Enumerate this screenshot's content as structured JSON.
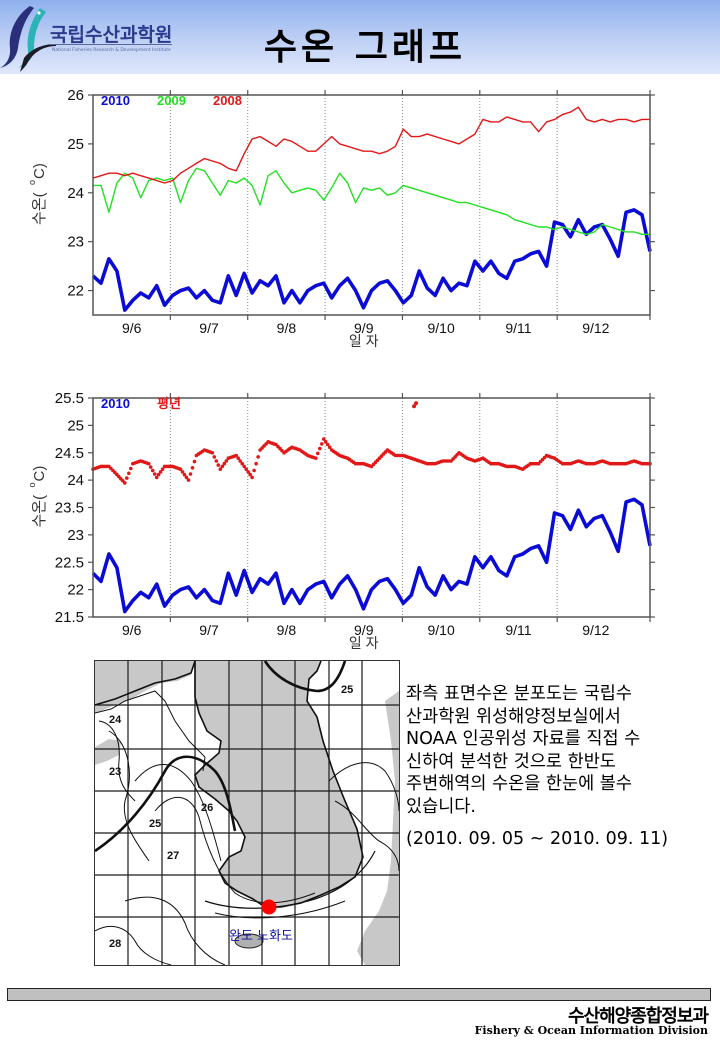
{
  "header": {
    "logo_kr": "국립수산과학원",
    "logo_en": "National Fisheries Research & Development Institute",
    "title": "수온 그래프"
  },
  "colors": {
    "y2010": "#0b0bd6",
    "y2009": "#22e022",
    "y2008": "#e01818",
    "normal": "#e01818",
    "marker": "#ff0000",
    "map_label": "#1010a0",
    "land": "#c8c8c8"
  },
  "chart_data": [
    {
      "type": "line",
      "title": "",
      "xlabel": "일 자",
      "ylabel": "수온(°C)",
      "ylabel_parts": [
        "수온(",
        "o",
        " C)"
      ],
      "x_unit": "days since 9/5 12:00",
      "xlim": [
        0,
        7.2
      ],
      "ylim": [
        21.5,
        26
      ],
      "yticks": [
        22,
        23,
        24,
        25,
        26
      ],
      "ytick_labels": [
        "22",
        "23",
        "24",
        "25",
        "26"
      ],
      "xtick_labels": [
        "9/6",
        "9/7",
        "9/8",
        "9/9",
        "9/10",
        "9/11",
        "9/12"
      ],
      "grid": "vertical-dotted",
      "legend": "top-left",
      "series": [
        {
          "name": "2010",
          "color_key": "y2010",
          "style": "thick",
          "values": [
            22.3,
            22.15,
            22.65,
            22.4,
            21.6,
            21.8,
            21.95,
            21.85,
            22.1,
            21.7,
            21.9,
            22.0,
            22.05,
            21.85,
            22.0,
            21.8,
            21.75,
            22.3,
            21.9,
            22.35,
            21.95,
            22.2,
            22.1,
            22.3,
            21.75,
            22.0,
            21.75,
            22.0,
            22.1,
            22.15,
            21.85,
            22.1,
            22.25,
            22.0,
            21.65,
            22.0,
            22.15,
            22.2,
            22.0,
            21.75,
            21.9,
            22.4,
            22.05,
            21.9,
            22.25,
            22.0,
            22.15,
            22.1,
            22.6,
            22.4,
            22.6,
            22.35,
            22.25,
            22.6,
            22.65,
            22.75,
            22.8,
            22.5,
            23.4,
            23.35,
            23.1,
            23.45,
            23.15,
            23.3,
            23.35,
            23.05,
            22.7,
            23.6,
            23.65,
            23.55,
            22.8
          ]
        },
        {
          "name": "2009",
          "color_key": "y2009",
          "style": "thin",
          "values": [
            24.15,
            24.15,
            23.6,
            24.2,
            24.4,
            24.3,
            23.9,
            24.25,
            24.3,
            24.25,
            24.3,
            23.8,
            24.25,
            24.5,
            24.45,
            24.2,
            23.95,
            24.25,
            24.2,
            24.3,
            24.15,
            23.75,
            24.35,
            24.45,
            24.2,
            24.0,
            24.05,
            24.1,
            24.05,
            23.85,
            24.1,
            24.4,
            24.2,
            23.8,
            24.1,
            24.05,
            24.1,
            23.95,
            24.0,
            24.15,
            24.1,
            24.05,
            24.0,
            23.95,
            23.9,
            23.85,
            23.8,
            23.8,
            23.75,
            23.7,
            23.65,
            23.6,
            23.55,
            23.45,
            23.4,
            23.35,
            23.3,
            23.3,
            23.25,
            23.3,
            23.25,
            23.2,
            23.15,
            23.2,
            23.35,
            23.3,
            23.25,
            23.2,
            23.2,
            23.15,
            23.15
          ]
        },
        {
          "name": "2008",
          "color_key": "y2008",
          "style": "thin",
          "values": [
            24.3,
            24.35,
            24.4,
            24.4,
            24.35,
            24.4,
            24.35,
            24.3,
            24.25,
            24.2,
            24.25,
            24.4,
            24.5,
            24.6,
            24.7,
            24.65,
            24.6,
            24.5,
            24.45,
            24.8,
            25.1,
            25.15,
            25.05,
            24.95,
            25.1,
            25.05,
            24.95,
            24.85,
            24.85,
            25.0,
            25.15,
            25.0,
            24.95,
            24.9,
            24.85,
            24.85,
            24.8,
            24.85,
            24.95,
            25.3,
            25.15,
            25.15,
            25.2,
            25.15,
            25.1,
            25.05,
            25.0,
            25.1,
            25.2,
            25.5,
            25.45,
            25.45,
            25.55,
            25.5,
            25.45,
            25.45,
            25.25,
            25.45,
            25.5,
            25.6,
            25.65,
            25.75,
            25.5,
            25.45,
            25.5,
            25.45,
            25.5,
            25.5,
            25.45,
            25.5,
            25.5
          ]
        }
      ]
    },
    {
      "type": "line",
      "title": "",
      "xlabel": "일 자",
      "ylabel": "수온(°C)",
      "ylabel_parts": [
        "수온(",
        "o",
        " C)"
      ],
      "x_unit": "days since 9/5 12:00",
      "xlim": [
        0,
        7.2
      ],
      "ylim": [
        21.5,
        25.5
      ],
      "yticks": [
        21.5,
        22,
        22.5,
        23,
        23.5,
        24,
        24.5,
        25,
        25.5
      ],
      "ytick_labels": [
        "21.5",
        "22",
        "22.5",
        "23",
        "23.5",
        "24",
        "24.5",
        "25",
        "25.5"
      ],
      "xtick_labels": [
        "9/6",
        "9/7",
        "9/8",
        "9/9",
        "9/10",
        "9/11",
        "9/12"
      ],
      "grid": "vertical-dotted",
      "legend": "top-left",
      "series": [
        {
          "name": "2010",
          "color_key": "y2010",
          "style": "thick",
          "values": [
            22.3,
            22.15,
            22.65,
            22.4,
            21.6,
            21.8,
            21.95,
            21.85,
            22.1,
            21.7,
            21.9,
            22.0,
            22.05,
            21.85,
            22.0,
            21.8,
            21.75,
            22.3,
            21.9,
            22.35,
            21.95,
            22.2,
            22.1,
            22.3,
            21.75,
            22.0,
            21.75,
            22.0,
            22.1,
            22.15,
            21.85,
            22.1,
            22.25,
            22.0,
            21.65,
            22.0,
            22.15,
            22.2,
            22.0,
            21.75,
            21.9,
            22.4,
            22.05,
            21.9,
            22.25,
            22.0,
            22.15,
            22.1,
            22.6,
            22.4,
            22.6,
            22.35,
            22.25,
            22.6,
            22.65,
            22.75,
            22.8,
            22.5,
            23.4,
            23.35,
            23.1,
            23.45,
            23.15,
            23.3,
            23.35,
            23.05,
            22.7,
            23.6,
            23.65,
            23.55,
            22.8
          ]
        },
        {
          "name": "평년",
          "color_key": "normal",
          "style": "dots",
          "values": [
            24.2,
            24.25,
            24.25,
            24.1,
            23.95,
            24.3,
            24.35,
            24.3,
            24.05,
            24.25,
            24.25,
            24.2,
            24.0,
            24.45,
            24.55,
            24.5,
            24.2,
            24.4,
            24.45,
            24.25,
            24.05,
            24.55,
            24.7,
            24.65,
            24.5,
            24.6,
            24.55,
            24.45,
            24.4,
            24.75,
            24.55,
            24.45,
            24.4,
            24.3,
            24.3,
            24.25,
            24.4,
            24.55,
            24.45,
            24.45,
            24.4,
            24.35,
            24.3,
            24.3,
            24.35,
            24.35,
            24.5,
            24.4,
            24.35,
            24.4,
            24.3,
            24.3,
            24.25,
            24.25,
            24.2,
            24.3,
            24.3,
            24.45,
            24.4,
            24.3,
            24.3,
            24.35,
            24.3,
            24.3,
            24.35,
            24.3,
            24.3,
            24.3,
            24.35,
            24.3,
            24.3
          ],
          "outlier": {
            "x": 4.15,
            "y": 25.35
          }
        }
      ]
    }
  ],
  "map": {
    "contours": [
      "24",
      "23",
      "25",
      "26",
      "25",
      "27",
      "28"
    ],
    "location_label": "완도 노화도"
  },
  "description": {
    "text": "좌측 표면수온 분포도는 국립수\n산과학원 위성해양정보실에서\nNOAA 인공위성 자료를 직접 수\n신하여 분석한 것으로  한반도\n주변해역의 수온을 한눈에 볼수\n있습니다.",
    "period": "(2010. 09. 05 ~ 2010. 09. 11)"
  },
  "footer": {
    "kr": "수산해양종합정보과",
    "en": "Fishery & Ocean Information Division"
  }
}
